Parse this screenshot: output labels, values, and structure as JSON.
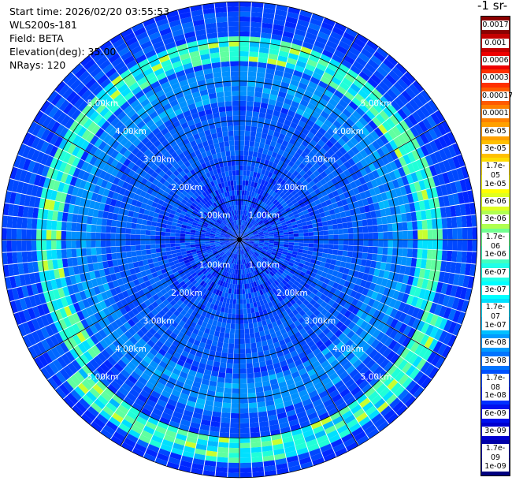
{
  "header": {
    "start_time": "Start time: 2026/02/20 03:55:53",
    "instrument": "WLS200s-181",
    "field": "Field: BETA",
    "elevation": "Elevation(deg): 35.00",
    "nrays": "NRays: 120"
  },
  "colorbar": {
    "title": "-1 sr-",
    "labels": [
      "0.0017",
      "0.001",
      "0.0006",
      "0.0003",
      "0.00017",
      "0.0001",
      "6e-05",
      "3e-05",
      "1.7e-05",
      "1e-05",
      "6e-06",
      "3e-06",
      "1.7e-06",
      "1e-06",
      "6e-07",
      "3e-07",
      "1.7e-07",
      "1e-07",
      "6e-08",
      "3e-08",
      "1.7e-08",
      "1e-08",
      "6e-09",
      "3e-09",
      "1.7e-09",
      "1e-09"
    ],
    "colors": [
      "#8b0000",
      "#c40000",
      "#ee0000",
      "#ff3000",
      "#ff5a00",
      "#ff8000",
      "#ffa000",
      "#ffc000",
      "#ffdd00",
      "#ffff00",
      "#e0ff20",
      "#b0ff50",
      "#70ff90",
      "#40ffc0",
      "#20ffe8",
      "#00ffff",
      "#00e0ff",
      "#00c0ff",
      "#009cff",
      "#0074ff",
      "#0050ff",
      "#0030ff",
      "#0010ee",
      "#0000d0",
      "#0000a8",
      "#000080"
    ]
  },
  "ring_labels": [
    "1.00km",
    "2.00km",
    "3.00km",
    "4.00km",
    "5.00km"
  ]
}
